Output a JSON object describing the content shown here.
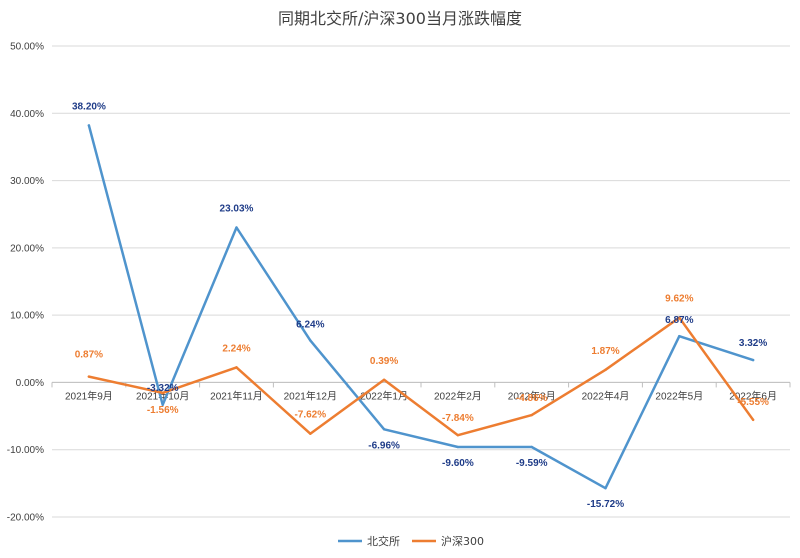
{
  "chart_data": {
    "type": "line",
    "title": "同期北交所/沪深300当月涨跌幅度",
    "categories": [
      "2021年9月",
      "2021年10月",
      "2021年11月",
      "2021年12月",
      "2022年1月",
      "2022年2月",
      "2022年3月",
      "2022年4月",
      "2022年5月",
      "2022年6月"
    ],
    "ylim": [
      -20,
      50
    ],
    "yticks": [
      -20,
      -10,
      0,
      10,
      20,
      30,
      40,
      50
    ],
    "ytick_labels": [
      "-20.00%",
      "-10.00%",
      "0.00%",
      "10.00%",
      "20.00%",
      "30.00%",
      "40.00%",
      "50.00%"
    ],
    "grid": true,
    "legend_position": "bottom",
    "series": [
      {
        "name": "北交所",
        "color": "#4f94cd",
        "label_color": "#1f3c88",
        "values": [
          38.2,
          -3.32,
          23.03,
          6.24,
          -6.96,
          -9.6,
          -9.59,
          -15.72,
          6.87,
          3.32
        ],
        "labels": [
          "38.20%",
          "-3.32%",
          "23.03%",
          "6.24%",
          "-6.96%",
          "-9.60%",
          "-9.59%",
          "-15.72%",
          "6.87%",
          "3.32%"
        ]
      },
      {
        "name": "沪深300",
        "color": "#ed7d31",
        "label_color": "#ed7d31",
        "values": [
          0.87,
          -1.56,
          2.24,
          -7.62,
          0.39,
          -7.84,
          -4.86,
          1.87,
          9.62,
          -5.55
        ],
        "labels": [
          "0.87%",
          "-1.56%",
          "2.24%",
          "-7.62%",
          "0.39%",
          "-7.84%",
          "-4.86%",
          "1.87%",
          "9.62%",
          "-5.55%"
        ]
      }
    ]
  }
}
